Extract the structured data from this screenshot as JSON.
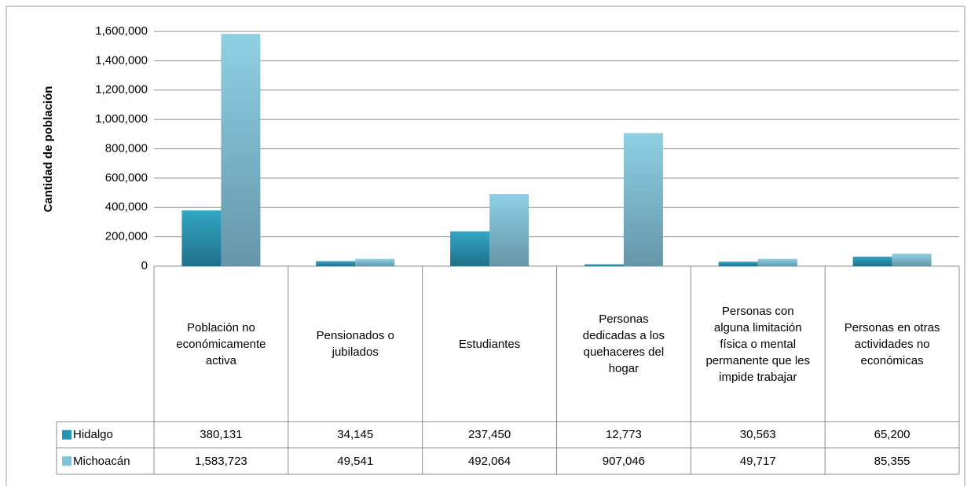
{
  "chart_data": {
    "type": "bar",
    "y_label": "Cantidad de población",
    "categories": [
      "Población no económicamente activa",
      "Pensionados o jubilados",
      "Estudiantes",
      "Personas dedicadas a los quehaceres del hogar",
      "Personas con alguna limitación física o mental permanente que les impide trabajar",
      "Personas en otras actividades no económicas"
    ],
    "series": [
      {
        "name": "Hidalgo",
        "color": "#2a93b2",
        "values": [
          380131,
          34145,
          237450,
          12773,
          30563,
          65200
        ],
        "value_labels": [
          "380,131",
          "34,145",
          "237,450",
          "12,773",
          "30,563",
          "65,200"
        ]
      },
      {
        "name": "Michoacán",
        "color": "#80c2d8",
        "values": [
          1583723,
          49541,
          492064,
          907046,
          49717,
          85355
        ],
        "value_labels": [
          "1,583,723",
          "49,541",
          "492,064",
          "907,046",
          "49,717",
          "85,355"
        ]
      }
    ],
    "ylim": [
      0,
      1600000
    ],
    "yticks": [
      0,
      {
        "value": 200000,
        "label": "200,000"
      },
      {
        "value": 400000,
        "label": "400,000"
      },
      {
        "value": 600000,
        "label": "600,000"
      },
      {
        "value": 800000,
        "label": "800,000"
      },
      {
        "value": 1000000,
        "label": "1,000,000"
      },
      {
        "value": 1200000,
        "label": "1,200,000"
      },
      {
        "value": 1400000,
        "label": "1,400,000"
      },
      {
        "value": 1600000,
        "label": "1,600,000"
      }
    ],
    "grid": true
  }
}
